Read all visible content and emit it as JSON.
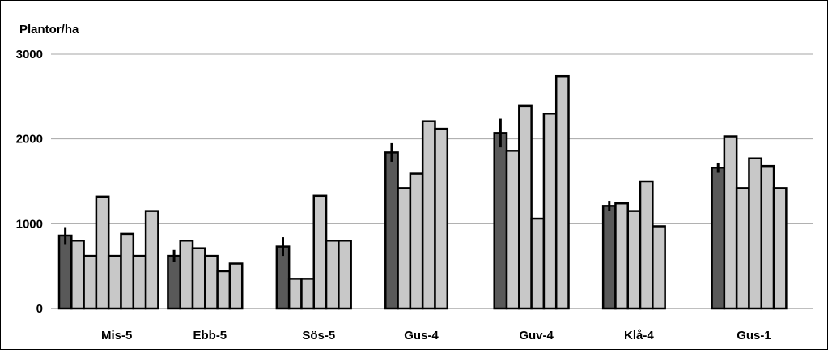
{
  "chart_data": {
    "type": "bar",
    "ylabel": "Plantor/ha",
    "ylim": [
      0,
      3000
    ],
    "yticks": [
      0,
      1000,
      2000,
      3000
    ],
    "grid": true,
    "colors": {
      "first": "#595959",
      "other": "#c8c8c8",
      "stroke": "#000000",
      "grid": "#a6a6a6"
    },
    "groups": [
      {
        "label": "Mis-5",
        "values": [
          860,
          800,
          620,
          1320,
          620,
          880,
          620,
          1150
        ],
        "error": [
          100
        ]
      },
      {
        "label": "Ebb-5",
        "values": [
          620,
          800,
          710,
          620,
          440,
          530
        ],
        "error": [
          70
        ]
      },
      {
        "label": "Sös-5",
        "values": [
          730,
          350,
          350,
          1330,
          800,
          800
        ],
        "error": [
          110
        ]
      },
      {
        "label": "Gus-4",
        "values": [
          1840,
          1420,
          1590,
          2210,
          2120
        ],
        "error": [
          110
        ]
      },
      {
        "label": "Guv-4",
        "values": [
          2070,
          1860,
          2390,
          1060,
          2300,
          2740
        ],
        "error": [
          170
        ]
      },
      {
        "label": "Klå-4",
        "values": [
          1210,
          1240,
          1150,
          1500,
          970
        ],
        "error": [
          60
        ]
      },
      {
        "label": "Gus-1",
        "values": [
          1660,
          2030,
          1420,
          1770,
          1680,
          1420
        ],
        "error": [
          60
        ]
      }
    ]
  }
}
